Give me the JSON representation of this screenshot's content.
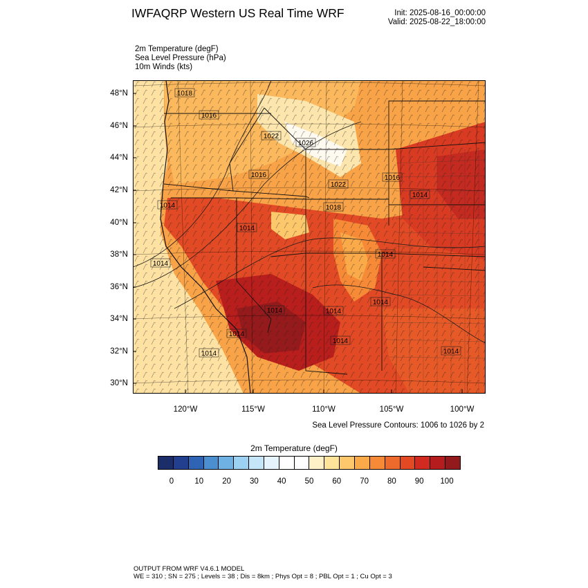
{
  "header": {
    "title": "IWFAQRP Western US Real Time WRF",
    "init": "Init: 2025-08-16_00:00:00",
    "valid": "Valid: 2025-08-22_18:00:00"
  },
  "fields": [
    "2m Temperature   (degF)",
    "Sea Level Pressure   (hPa)",
    "10m Winds   (kts)"
  ],
  "map": {
    "lat_labels": [
      "48°N",
      "46°N",
      "44°N",
      "42°N",
      "40°N",
      "38°N",
      "36°N",
      "34°N",
      "32°N",
      "30°N"
    ],
    "lon_labels": [
      "120°W",
      "115°W",
      "110°W",
      "105°W",
      "100°W"
    ],
    "slp_labels": [
      "1018",
      "1016",
      "1022",
      "1026",
      "1016",
      "1022",
      "1016",
      "1014",
      "1018",
      "1014",
      "1014",
      "1014",
      "1014",
      "1014",
      "1014",
      "1014",
      "1014",
      "1014",
      "1014",
      "1014"
    ],
    "contour_note": "Sea Level Pressure Contours: 1006 to 1026 by 2"
  },
  "colorbar": {
    "title": "2m Temperature  (degF)",
    "colors": [
      "#1c2e6a",
      "#213f8e",
      "#2e64b3",
      "#4b8fd0",
      "#6eb1e2",
      "#9cd1f1",
      "#c4e6f8",
      "#e6f5fd",
      "#ffffff",
      "#ffffff",
      "#fef1c8",
      "#fee39a",
      "#fdc86b",
      "#fbaa49",
      "#f68a36",
      "#ee6a2c",
      "#e34a24",
      "#d12a20",
      "#b51c1e",
      "#921a1c"
    ],
    "ticks": [
      "0",
      "10",
      "20",
      "30",
      "40",
      "50",
      "60",
      "70",
      "80",
      "90",
      "100"
    ]
  },
  "footer": {
    "line1": "OUTPUT FROM WRF V4.6.1 MODEL",
    "line2": "WE = 310 ; SN = 275 ; Levels = 38 ; Dis = 8km ; Phys Opt = 8 ; PBL Opt = 1 ; Cu Opt = 3"
  }
}
